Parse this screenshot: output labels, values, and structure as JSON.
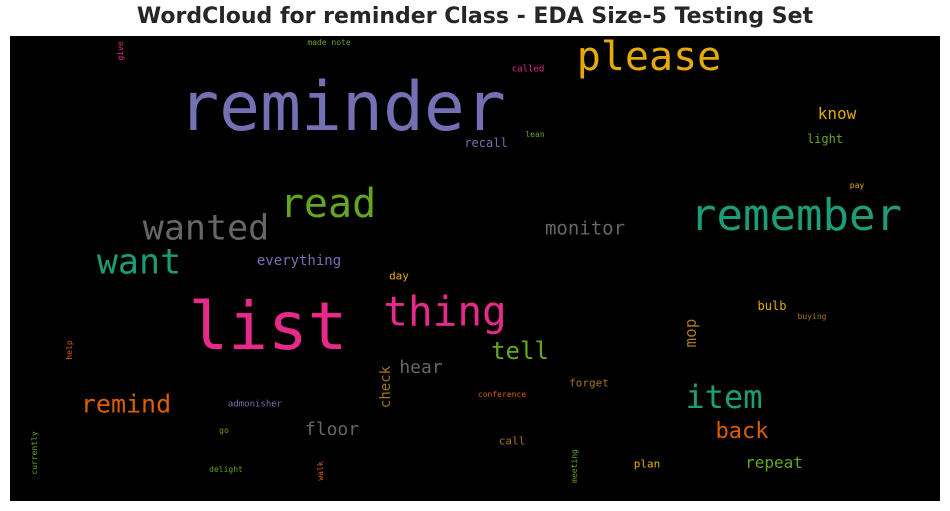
{
  "title": "WordCloud for reminder Class - EDA Size-5 Testing Set",
  "colors": {
    "purple": "#7570b3",
    "pink": "#e7298a",
    "teal": "#1b9e77",
    "green": "#66a61e",
    "orange": "#d95f02",
    "gold": "#e6ab02",
    "brown": "#a6761d",
    "gray": "#666666",
    "background": "#000000"
  },
  "words": [
    {
      "text": "reminder",
      "color": "#7570b3"
    },
    {
      "text": "list",
      "color": "#e7298a"
    },
    {
      "text": "remember",
      "color": "#1b9e77"
    },
    {
      "text": "please",
      "color": "#e6ab02"
    },
    {
      "text": "read",
      "color": "#66a61e"
    },
    {
      "text": "wanted",
      "color": "#666666"
    },
    {
      "text": "want",
      "color": "#1b9e77"
    },
    {
      "text": "thing",
      "color": "#e7298a"
    },
    {
      "text": "item",
      "color": "#1b9e77"
    },
    {
      "text": "remind",
      "color": "#d95f02"
    },
    {
      "text": "tell",
      "color": "#66a61e"
    },
    {
      "text": "monitor",
      "color": "#666666"
    },
    {
      "text": "back",
      "color": "#d95f02"
    },
    {
      "text": "hear",
      "color": "#666666"
    },
    {
      "text": "floor",
      "color": "#666666"
    },
    {
      "text": "repeat",
      "color": "#66a61e"
    },
    {
      "text": "know",
      "color": "#e6ab02"
    },
    {
      "text": "everything",
      "color": "#7570b3"
    },
    {
      "text": "mop",
      "color": "#a6761d"
    },
    {
      "text": "check",
      "color": "#a6761d"
    },
    {
      "text": "recall",
      "color": "#7570b3"
    },
    {
      "text": "light",
      "color": "#66a61e"
    },
    {
      "text": "bulb",
      "color": "#e6ab02"
    },
    {
      "text": "forget",
      "color": "#a6761d"
    },
    {
      "text": "call",
      "color": "#a6761d"
    },
    {
      "text": "plan",
      "color": "#e6ab02"
    },
    {
      "text": "day",
      "color": "#e6ab02"
    },
    {
      "text": "called",
      "color": "#e7298a"
    },
    {
      "text": "made note",
      "color": "#66a61e"
    },
    {
      "text": "give",
      "color": "#e7298a"
    },
    {
      "text": "lean",
      "color": "#66a61e"
    },
    {
      "text": "pay",
      "color": "#e6ab02"
    },
    {
      "text": "buying",
      "color": "#a6761d"
    },
    {
      "text": "help",
      "color": "#d95f02"
    },
    {
      "text": "admonisher",
      "color": "#7570b3"
    },
    {
      "text": "conference",
      "color": "#d95f02"
    },
    {
      "text": "go",
      "color": "#66a61e"
    },
    {
      "text": "delight",
      "color": "#66a61e"
    },
    {
      "text": "walk",
      "color": "#d95f02"
    },
    {
      "text": "meeting",
      "color": "#66a61e"
    },
    {
      "text": "currently",
      "color": "#66a61e"
    }
  ]
}
